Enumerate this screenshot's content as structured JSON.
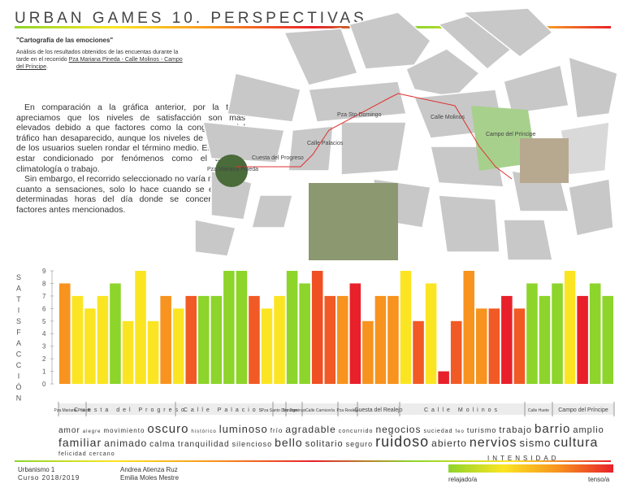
{
  "header": {
    "title": "URBAN GAMES 10. PERSPECTIVAS",
    "subtitle": "\"Cartografía de las emociones\"",
    "description": [
      "Análisis de los resultados obtenidos de las encuentas durante la tarde en el recorrido ",
      "Pza Mariana Pineda - Calle Molinos - Campo del Príncipe",
      "."
    ]
  },
  "body": [
    "En comparación a la gráfica anterior, por la tarde apreciamos que los niveles de satisfacción son más elevados debido a que factores como la congestión del tráfico han desaparecido, aunque los niveles de intensidad de los usuarios suelen rondar el término medio. Esto puede estar condicionado por fenómenos como el turismo, climatología o trabajo.",
    "Sin embargo, el recorrido seleccionado no varía mucho en cuanto a sensaciones, solo lo hace cuando se estudia a determinadas horas del día donde se concentran los factores antes mencionados."
  ],
  "map": {
    "labels": [
      "Pza Sto Domingo",
      "Calle Molinos",
      "Campo del Príncipe",
      "Calle Palacios",
      "Cuesta del Progreso",
      "Pza Mariana Pineda"
    ]
  },
  "chart_data": {
    "type": "bar",
    "y_label": "SATISFACCIÓN",
    "values": [
      8,
      7,
      6,
      7,
      8,
      5,
      9,
      5,
      7,
      6,
      7,
      7,
      7,
      9,
      9,
      7,
      6,
      7,
      9,
      8,
      9,
      7,
      7,
      8,
      5,
      7,
      7,
      9,
      5,
      8,
      1,
      5,
      9,
      6,
      6,
      7,
      6,
      8,
      7,
      8,
      9,
      7,
      8,
      7
    ],
    "colors": [
      "#f7931e",
      "#fbe522",
      "#fbe522",
      "#fbe522",
      "#8dd42b",
      "#fbe522",
      "#fbe522",
      "#fbe522",
      "#f7931e",
      "#fbe522",
      "#f15a24",
      "#8dd42b",
      "#8dd42b",
      "#8dd42b",
      "#8dd42b",
      "#f15a24",
      "#fbe522",
      "#fbe522",
      "#8dd42b",
      "#8dd42b",
      "#f04e23",
      "#f15a24",
      "#f7931e",
      "#e8202a",
      "#f7931e",
      "#f7931e",
      "#f7931e",
      "#fbe522",
      "#f15a24",
      "#fbe522",
      "#e8202a",
      "#f15a24",
      "#f7931e",
      "#f7931e",
      "#f15a24",
      "#e8202a",
      "#f15a24",
      "#8dd42b",
      "#8dd42b",
      "#8dd42b",
      "#fbe522",
      "#e8202a",
      "#8dd42b",
      "#8dd42b"
    ],
    "ylim": [
      0,
      9
    ],
    "yticks": [
      0,
      1,
      2,
      3,
      4,
      5,
      6,
      7,
      8,
      9
    ],
    "grid": false,
    "segments": [
      "Pza Mariana Pineda",
      "Cuesta del Progreso",
      "Calle Palacios",
      "Pza Santo Domingo",
      "Sto Domingo",
      "Calle Carnicería",
      "Pza Realejo",
      "Cuesta del Realejo",
      "Calle Molinos",
      "Calle Huete",
      "Campo del Príncipe"
    ]
  },
  "words": [
    "amor",
    "alegre",
    "movimiento",
    "oscuro",
    "histórico",
    "luminoso",
    "frío",
    "agradable",
    "concurrido",
    "negocios",
    "suciedad",
    "feo",
    "turismo",
    "trabajo",
    "barrio",
    "amplio",
    "familiar",
    "animado",
    "calma",
    "tranquilidad",
    "silencioso",
    "bello",
    "solitario",
    "seguro",
    "ruidoso",
    "abierto",
    "nervios",
    "sismo",
    "cultura",
    "felicidad",
    "cercano"
  ],
  "legend": {
    "title": "INTENSIDAD",
    "low": "relajado/a",
    "high": "tenso/a"
  },
  "footer": {
    "course": "Urbanismo 1",
    "year": "Curso 2018/2019",
    "authors": [
      "Andrea Atienza Ruz",
      "Emilia Moles Mestre"
    ]
  }
}
